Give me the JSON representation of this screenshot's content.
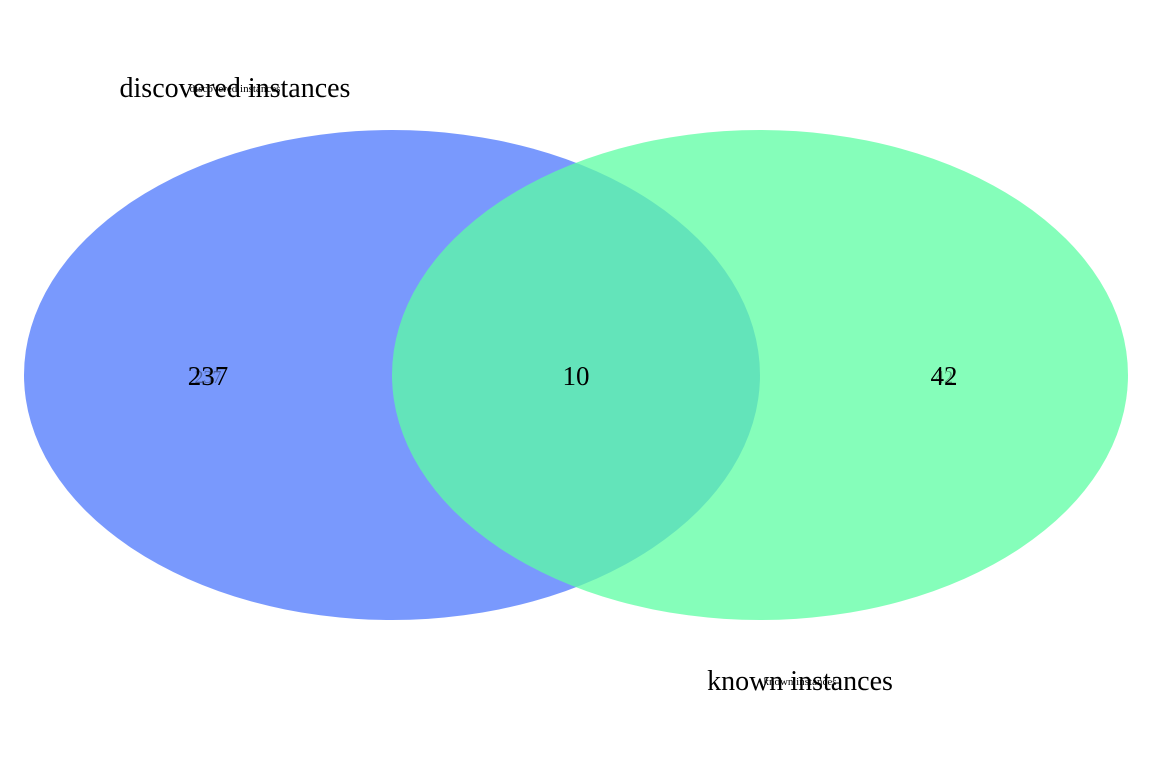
{
  "sets": [
    {
      "name": "discovered instances",
      "color": "#5b83fd",
      "opacity": 0.82
    },
    {
      "name": "known instances",
      "color": "#5cfea3",
      "opacity": 0.75
    }
  ],
  "regions": {
    "only_discovered": "237",
    "intersection": "10",
    "only_known": "42"
  }
}
